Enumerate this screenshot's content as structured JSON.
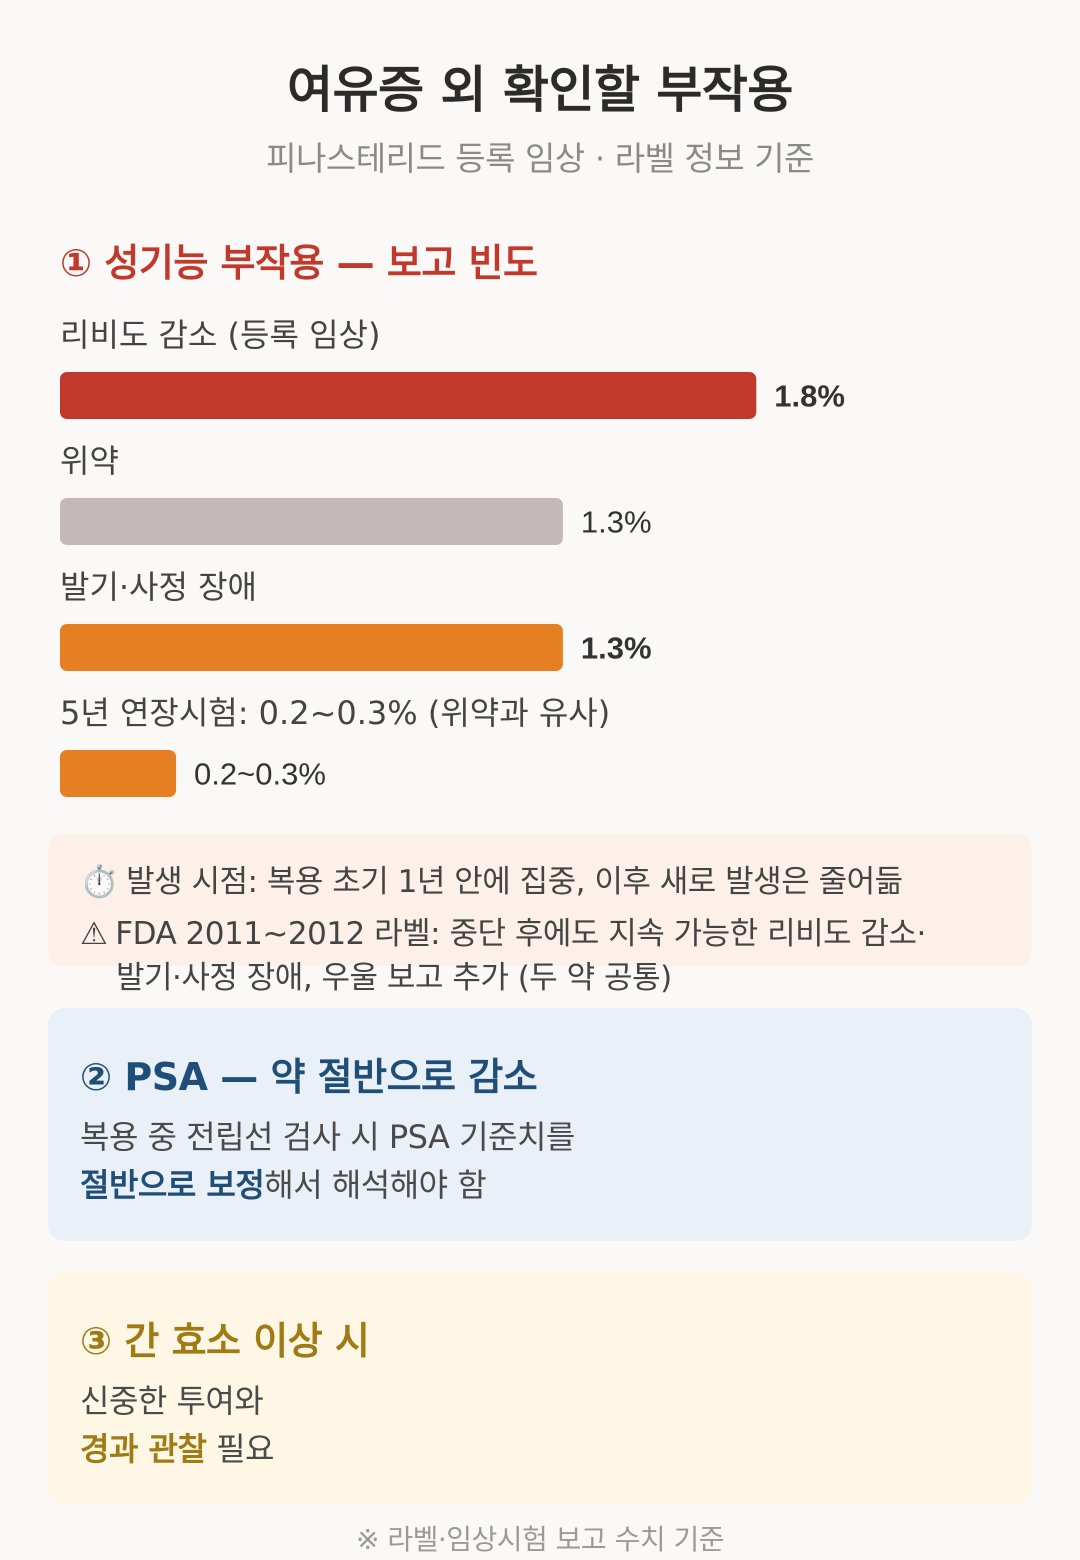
{
  "title": "여유증 외 확인할 부작용",
  "subtitle": "피나스테리드 등록 임상 · 라벨 정보 기준",
  "section1": {
    "title": "① 성기능 부작용 — 보고 빈도"
  },
  "chart_data": {
    "type": "bar",
    "orientation": "horizontal",
    "title": "① 성기능 부작용 — 보고 빈도",
    "xlim": [
      0,
      2.43
    ],
    "categories": [
      "리비도 감소 (등록 임상)",
      "위약",
      "발기·사정 장애",
      "5년 연장시험: 0.2~0.3% (위약과 유사)"
    ],
    "values": [
      1.8,
      1.3,
      1.3,
      0.3
    ],
    "value_labels": [
      "1.8%",
      "1.3%",
      "1.3%",
      "0.2~0.3%"
    ],
    "bold_labels": [
      true,
      false,
      true,
      false
    ],
    "colors": [
      "#c0392b",
      "#c5b8b8",
      "#e67e22",
      "#e67e22"
    ]
  },
  "notes": [
    {
      "icon": "⏱️",
      "text": "발생 시점: 복용 초기 1년 안에 집중, 이후 새로 발생은 줄어듦"
    },
    {
      "icon": "⚠",
      "text": "FDA 2011~2012 라벨: 중단 후에도 지속 가능한 리비도 감소·"
    },
    {
      "icon": "",
      "text": "발기·사정 장애, 우울 보고 추가 (두 약 공통)"
    }
  ],
  "psa_card": {
    "title": "② PSA — 약 절반으로 감소",
    "line1": "복용 중 전립선 검사 시 PSA 기준치를",
    "line2_em": "절반으로 보정",
    "line2_rest": "해서 해석해야 함"
  },
  "liver_card": {
    "title": "③ 간 효소 이상 시",
    "line1": "신중한 투여와",
    "line2_em": "경과 관찰",
    "line2_rest": " 필요"
  },
  "footer": "※ 라벨·임상시험 보고 수치 기준"
}
